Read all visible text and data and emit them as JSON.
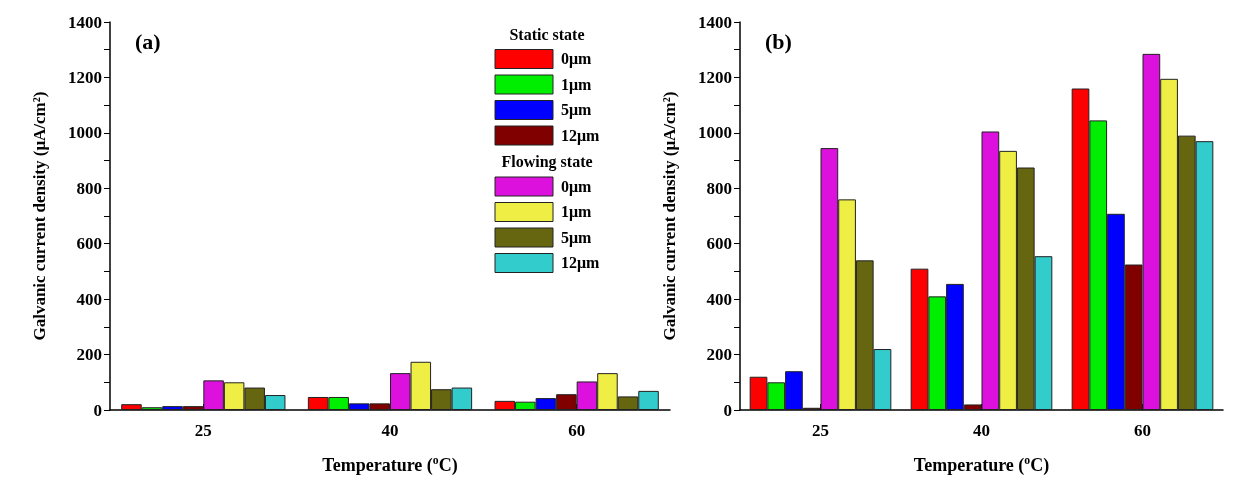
{
  "chart_data": [
    {
      "type": "bar",
      "title": "(a)",
      "xlabel": "Temperature ($^{o}$C)",
      "ylabel": "Galvanic current density (μA/cm²)",
      "legend_title": "Static state",
      "annotations": [
        "Flowing state"
      ],
      "legend": "top right",
      "grid": false,
      "categories": [
        "25",
        "40",
        "60"
      ],
      "ylim": [
        0,
        1400
      ],
      "yticks": [
        0,
        {
          "value": 100,
          "label": null
        },
        200,
        {
          "value": 300,
          "label": null
        },
        400,
        {
          "value": 500,
          "label": null
        },
        600,
        {
          "value": 700,
          "label": null
        },
        800,
        {
          "value": 900,
          "label": null
        },
        1000,
        {
          "value": 1100,
          "label": null
        },
        1200,
        {
          "value": 1300,
          "label": null
        },
        1400
      ],
      "series": [
        {
          "name": "0μm",
          "color": "#ff0000",
          "values": [
            21,
            47,
            33
          ]
        },
        {
          "name": "1μm",
          "color": "#00ee00",
          "values": [
            10,
            47,
            30
          ]
        },
        {
          "name": "5μm",
          "color": "#0000ff",
          "values": [
            14,
            24,
            43
          ]
        },
        {
          "name": "12μm",
          "color": "#800000",
          "values": [
            14,
            24,
            57
          ]
        },
        {
          "name": "0μm",
          "color": "#dd11dd",
          "values": [
            107,
            133,
            103
          ]
        },
        {
          "name": "1μm",
          "color": "#eeee44",
          "values": [
            100,
            174,
            133
          ]
        },
        {
          "name": "5μm",
          "color": "#666611",
          "values": [
            81,
            75,
            49
          ]
        },
        {
          "name": "12μm",
          "color": "#33cccc",
          "values": [
            54,
            81,
            69
          ]
        }
      ]
    },
    {
      "type": "bar",
      "title": "(b)",
      "xlabel": "Temperature ($^{o}$C)",
      "ylabel": "Galvanic current density (μA/cm²)",
      "grid": false,
      "categories": [
        "25",
        "40",
        "60"
      ],
      "ylim": [
        0,
        1400
      ],
      "yticks": [
        0,
        {
          "value": 100,
          "label": null
        },
        200,
        {
          "value": 300,
          "label": null
        },
        400,
        {
          "value": 500,
          "label": null
        },
        600,
        {
          "value": 700,
          "label": null
        },
        800,
        {
          "value": 900,
          "label": null
        },
        1000,
        {
          "value": 1100,
          "label": null
        },
        1200,
        {
          "value": 1300,
          "label": null
        },
        1400
      ],
      "series": [
        {
          "color": "#ff0000",
          "values": [
            120,
            510,
            1160
          ]
        },
        {
          "color": "#00ee00",
          "values": [
            100,
            410,
            1045
          ]
        },
        {
          "color": "#0000ff",
          "values": [
            140,
            455,
            708
          ]
        },
        {
          "color": "#800000",
          "values": [
            8,
            20,
            525
          ]
        },
        {
          "color": "#dd11dd",
          "values": [
            945,
            1005,
            1285
          ]
        },
        {
          "color": "#eeee44",
          "values": [
            760,
            935,
            1195
          ]
        },
        {
          "color": "#666611",
          "values": [
            540,
            875,
            990
          ]
        },
        {
          "color": "#33cccc",
          "values": [
            220,
            555,
            970
          ]
        }
      ]
    }
  ]
}
